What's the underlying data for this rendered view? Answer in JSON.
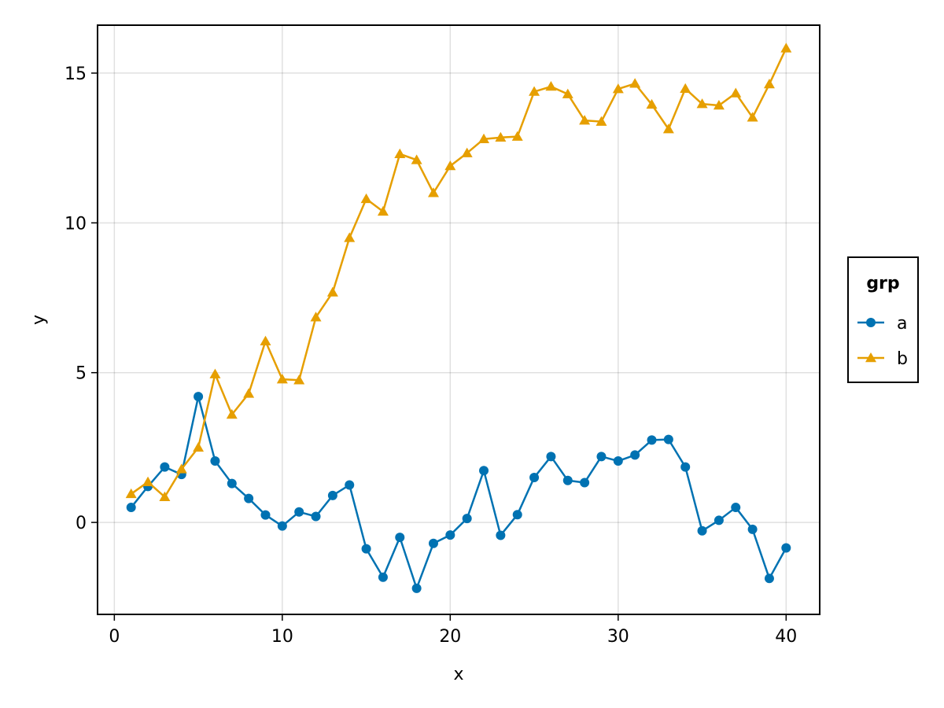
{
  "chart_data": {
    "type": "line",
    "xlabel": "x",
    "ylabel": "y",
    "xlim": [
      -1,
      42
    ],
    "ylim": [
      -3.07,
      16.6
    ],
    "xticks": [
      0,
      10,
      20,
      30,
      40
    ],
    "yticks": [
      0,
      5,
      10,
      15
    ],
    "grid": true,
    "legend": {
      "title": "grp",
      "placement": "right"
    },
    "x": [
      1,
      2,
      3,
      4,
      5,
      6,
      7,
      8,
      9,
      10,
      11,
      12,
      13,
      14,
      15,
      16,
      17,
      18,
      19,
      20,
      21,
      22,
      23,
      24,
      25,
      26,
      27,
      28,
      29,
      30,
      31,
      32,
      33,
      34,
      35,
      36,
      37,
      38,
      39,
      40
    ],
    "series": [
      {
        "name": "a",
        "color": "#0072b2",
        "marker": "circle",
        "values": [
          0.5,
          1.2,
          1.85,
          1.6,
          4.2,
          2.05,
          1.3,
          0.8,
          0.25,
          -0.12,
          0.35,
          0.2,
          0.9,
          1.25,
          -0.88,
          -1.83,
          -0.5,
          -2.2,
          -0.7,
          -0.42,
          0.13,
          1.73,
          -0.43,
          0.26,
          1.5,
          2.2,
          1.4,
          1.33,
          2.2,
          2.05,
          2.25,
          2.75,
          2.77,
          1.85,
          -0.28,
          0.07,
          0.5,
          -0.23,
          -1.87,
          -0.85
        ]
      },
      {
        "name": "b",
        "color": "#e69f00",
        "marker": "triangle",
        "values": [
          0.95,
          1.35,
          0.85,
          1.78,
          2.5,
          4.95,
          3.6,
          4.3,
          6.05,
          4.78,
          4.75,
          6.85,
          7.68,
          9.5,
          10.8,
          10.38,
          12.3,
          12.1,
          11.0,
          11.9,
          12.33,
          12.8,
          12.85,
          12.88,
          14.38,
          14.55,
          14.3,
          13.42,
          13.38,
          14.47,
          14.65,
          13.95,
          13.13,
          14.48,
          13.97,
          13.92,
          14.33,
          13.52,
          14.63,
          15.83
        ]
      }
    ]
  }
}
